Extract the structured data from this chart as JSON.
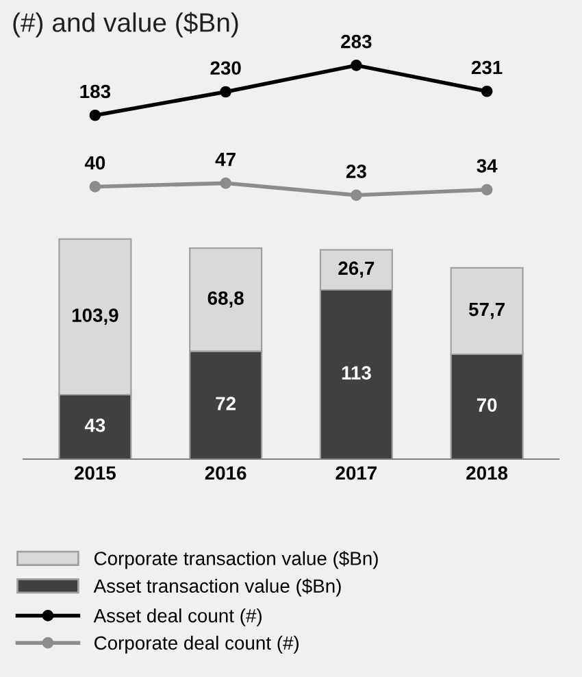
{
  "chart_data": [
    {
      "type": "line",
      "title": "(#) and value ($Bn)",
      "categories": [
        "2015",
        "2016",
        "2017",
        "2018"
      ],
      "marker": "circle",
      "tick_labels": false,
      "legend": "bottom",
      "series": [
        {
          "name": "Asset deal count (#)",
          "color": "#000000",
          "values": [
            183,
            230,
            283,
            231
          ],
          "value_labels": [
            "183",
            "230",
            "283",
            "231"
          ]
        },
        {
          "name": "Corporate deal count (#)",
          "color": "#8c8c8c",
          "values": [
            40,
            47,
            23,
            34
          ],
          "value_labels": [
            "40",
            "47",
            "23",
            "34"
          ]
        }
      ]
    },
    {
      "type": "bar",
      "categories": [
        "2015",
        "2016",
        "2017",
        "2018"
      ],
      "stacked": true,
      "tick_labels": "x",
      "legend": "bottom",
      "series": [
        {
          "name": "Asset transaction value ($Bn)",
          "color": "#404040",
          "values": [
            43,
            72,
            113,
            70
          ],
          "value_labels": [
            "43",
            "72",
            "113",
            "70"
          ]
        },
        {
          "name": "Corporate transaction value ($Bn)",
          "color": "#d9d9d9",
          "values": [
            103.9,
            68.8,
            26.7,
            57.7
          ],
          "value_labels": [
            "103,9",
            "68,8",
            "26,7",
            "57,7"
          ]
        }
      ]
    }
  ]
}
